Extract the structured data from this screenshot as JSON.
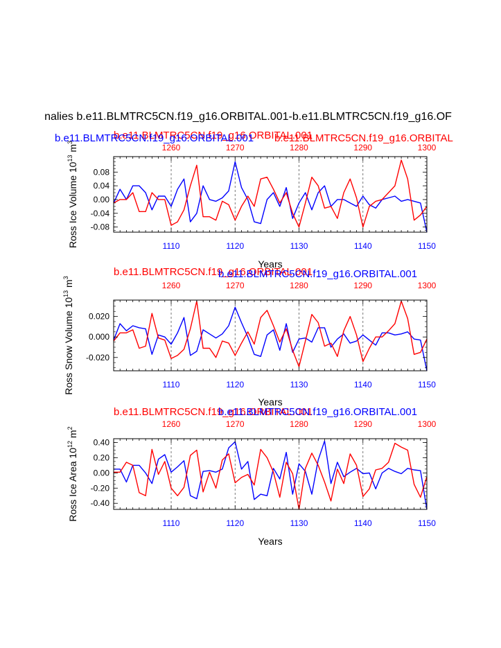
{
  "main_title": "nalies b.e11.BLMTRC5CN.f19_g16.ORBITAL.001-b.e11.BLMTRC5CN.f19_g16.OF",
  "colors": {
    "red_series": "#ff0000",
    "blue_series": "#0000ff",
    "axis": "#000000",
    "grid": "#555555"
  },
  "chart_data": [
    {
      "type": "line",
      "ylabel": "Ross Ice Volume 10^13 m^3",
      "ylabel_main": "Ross Ice Volume 10",
      "ylabel_exp": "13",
      "ylabel_unit": " m",
      "ylabel_unit_exp": "3",
      "xlabel": "Years",
      "top_title_red": "b.e11.BLMTRC5CN.f19_g16.ORBITAL.001",
      "top_title_blue": "b.e11.BLMTRC5CN.f19_g16.ORBITAL.001",
      "top_title_red2": "b.e11.BLMTRC5CN.f19_g16.ORBITAL",
      "ylim": [
        -0.095,
        0.125
      ],
      "yticks": [
        -0.08,
        -0.04,
        0.0,
        0.04,
        0.08
      ],
      "ytick_labels": [
        "-0.08",
        "-0.04",
        "0.00",
        "0.04",
        "0.08"
      ],
      "x_bottom_range": [
        1101,
        1150
      ],
      "x_bottom_ticks": [
        1110,
        1120,
        1130,
        1140,
        1150
      ],
      "x_bottom_labels": [
        "1110",
        "1120",
        "1130",
        "1140",
        "1150"
      ],
      "x_top_range": [
        1251,
        1300
      ],
      "x_top_ticks": [
        1260,
        1270,
        1280,
        1290,
        1300
      ],
      "x_top_labels": [
        "1260",
        "1270",
        "1280",
        "1290",
        "1300"
      ],
      "series": [
        {
          "name": "b.e11.BLMTRC5CN.f19_g16.ORBITAL.001",
          "axis": "bottom",
          "color": "blue",
          "x": [
            1101,
            1102,
            1103,
            1104,
            1105,
            1106,
            1107,
            1108,
            1109,
            1110,
            1111,
            1112,
            1113,
            1114,
            1115,
            1116,
            1117,
            1118,
            1119,
            1120,
            1121,
            1122,
            1123,
            1124,
            1125,
            1126,
            1127,
            1128,
            1129,
            1130,
            1131,
            1132,
            1133,
            1134,
            1135,
            1136,
            1137,
            1138,
            1139,
            1140,
            1141,
            1142,
            1143,
            1144,
            1145,
            1146,
            1147,
            1148,
            1149,
            1150
          ],
          "values": [
            -0.01,
            0.03,
            0.0,
            0.04,
            0.04,
            0.02,
            -0.03,
            0.01,
            0.01,
            -0.02,
            0.03,
            0.06,
            -0.065,
            -0.04,
            0.04,
            0.0,
            -0.005,
            0.005,
            0.025,
            0.11,
            0.035,
            0.0,
            -0.065,
            -0.07,
            0.0,
            0.02,
            -0.02,
            0.035,
            -0.055,
            -0.01,
            0.02,
            -0.03,
            0.02,
            0.04,
            -0.02,
            0.0,
            0.0,
            -0.01,
            -0.02,
            0.01,
            -0.015,
            -0.025,
            0.0,
            0.005,
            0.01,
            -0.005,
            0.0,
            -0.005,
            -0.01,
            -0.095
          ]
        },
        {
          "name": "b.e11.BLMTRC5CN.f19_g16.ORBITAL.001-b.e11.BLMTRC5CN.f19_g16.OF",
          "axis": "top",
          "color": "red",
          "x": [
            1251,
            1252,
            1253,
            1254,
            1255,
            1256,
            1257,
            1258,
            1259,
            1260,
            1261,
            1262,
            1263,
            1264,
            1265,
            1266,
            1267,
            1268,
            1269,
            1270,
            1271,
            1272,
            1273,
            1274,
            1275,
            1276,
            1277,
            1278,
            1279,
            1280,
            1281,
            1282,
            1283,
            1284,
            1285,
            1286,
            1287,
            1288,
            1289,
            1290,
            1291,
            1292,
            1293,
            1294,
            1295,
            1296,
            1297,
            1298,
            1299,
            1300
          ],
          "values": [
            -0.01,
            0.0,
            0.0,
            0.02,
            -0.035,
            -0.035,
            0.02,
            0.0,
            0.0,
            -0.075,
            -0.065,
            -0.03,
            0.04,
            0.1,
            -0.05,
            -0.05,
            -0.06,
            -0.005,
            -0.015,
            -0.06,
            -0.02,
            0.01,
            -0.02,
            0.06,
            0.065,
            0.03,
            -0.01,
            0.02,
            -0.04,
            -0.08,
            -0.01,
            0.065,
            0.04,
            -0.025,
            -0.02,
            -0.055,
            0.02,
            0.06,
            0.005,
            -0.08,
            -0.02,
            -0.005,
            0.0,
            0.02,
            0.04,
            0.115,
            0.06,
            -0.06,
            -0.045,
            -0.02
          ]
        }
      ]
    },
    {
      "type": "line",
      "ylabel": "Ross Snow Volume 10^13 m^3",
      "ylabel_main": "Ross Snow Volume 10",
      "ylabel_exp": "13",
      "ylabel_unit": " m",
      "ylabel_unit_exp": "3",
      "xlabel": "Years",
      "top_title_red": "b.e11.BLMTRC5CN.f19_g16.ORBITAL.001",
      "top_title_blue": "b.e11.BLMTRC5CN.f19_g16.ORBITAL.001",
      "ylim": [
        -0.033,
        0.036
      ],
      "yticks": [
        -0.02,
        0.0,
        0.02
      ],
      "ytick_labels": [
        "-0.020",
        "0.000",
        "0.020"
      ],
      "x_bottom_range": [
        1101,
        1150
      ],
      "x_bottom_ticks": [
        1110,
        1120,
        1130,
        1140,
        1150
      ],
      "x_bottom_labels": [
        "1110",
        "1120",
        "1130",
        "1140",
        "1150"
      ],
      "x_top_range": [
        1251,
        1300
      ],
      "x_top_ticks": [
        1260,
        1270,
        1280,
        1290,
        1300
      ],
      "x_top_labels": [
        "1260",
        "1270",
        "1280",
        "1290",
        "1300"
      ],
      "series": [
        {
          "name": "b.e11.BLMTRC5CN.f19_g16.ORBITAL.001",
          "axis": "bottom",
          "color": "blue",
          "x": [
            1101,
            1102,
            1103,
            1104,
            1105,
            1106,
            1107,
            1108,
            1109,
            1110,
            1111,
            1112,
            1113,
            1114,
            1115,
            1116,
            1117,
            1118,
            1119,
            1120,
            1121,
            1122,
            1123,
            1124,
            1125,
            1126,
            1127,
            1128,
            1129,
            1130,
            1131,
            1132,
            1133,
            1134,
            1135,
            1136,
            1137,
            1138,
            1139,
            1140,
            1141,
            1142,
            1143,
            1144,
            1145,
            1146,
            1147,
            1148,
            1149,
            1150
          ],
          "values": [
            -0.003,
            0.013,
            0.006,
            0.011,
            0.009,
            0.008,
            -0.017,
            0.002,
            0.0,
            -0.007,
            0.004,
            0.019,
            -0.018,
            -0.014,
            0.007,
            0.003,
            -0.001,
            0.003,
            0.011,
            0.029,
            0.014,
            0.0,
            -0.017,
            -0.019,
            0.002,
            0.007,
            -0.013,
            0.013,
            -0.015,
            -0.002,
            -0.001,
            -0.005,
            0.009,
            0.009,
            -0.01,
            -0.002,
            0.003,
            -0.006,
            -0.004,
            0.002,
            -0.003,
            -0.008,
            0.004,
            0.004,
            0.002,
            0.003,
            0.005,
            -0.002,
            -0.003,
            -0.033
          ]
        },
        {
          "name": "b.e11.BLMTRC5CN.f19_g16.ORBITAL.001",
          "axis": "top",
          "color": "red",
          "x": [
            1251,
            1252,
            1253,
            1254,
            1255,
            1256,
            1257,
            1258,
            1259,
            1260,
            1261,
            1262,
            1263,
            1264,
            1265,
            1266,
            1267,
            1268,
            1269,
            1270,
            1271,
            1272,
            1273,
            1274,
            1275,
            1276,
            1277,
            1278,
            1279,
            1280,
            1281,
            1282,
            1283,
            1284,
            1285,
            1286,
            1287,
            1288,
            1289,
            1290,
            1291,
            1292,
            1293,
            1294,
            1295,
            1296,
            1297,
            1298,
            1299,
            1300
          ],
          "values": [
            -0.004,
            0.004,
            0.004,
            0.007,
            -0.011,
            -0.009,
            0.023,
            -0.001,
            -0.003,
            -0.021,
            -0.018,
            -0.012,
            0.008,
            0.035,
            -0.011,
            -0.011,
            -0.02,
            -0.004,
            -0.006,
            -0.018,
            -0.006,
            0.005,
            -0.007,
            0.019,
            0.026,
            0.011,
            -0.005,
            0.008,
            -0.013,
            -0.029,
            -0.004,
            0.022,
            0.014,
            -0.009,
            -0.006,
            -0.019,
            0.006,
            0.02,
            0.002,
            -0.024,
            -0.011,
            0.0,
            0.0,
            0.006,
            0.013,
            0.035,
            0.018,
            -0.017,
            -0.015,
            -0.002
          ]
        }
      ]
    },
    {
      "type": "line",
      "ylabel": "Ross Ice Area 10^12 m^2",
      "ylabel_main": "Ross Ice Area 10",
      "ylabel_exp": "12",
      "ylabel_unit": " m",
      "ylabel_unit_exp": "2",
      "xlabel": "Years",
      "top_title_red": "b.e11.BLMTRC5CN.f19_g16.ORBITAL.001",
      "top_title_blue": "b.e11.BLMTRC5CN.f19_g16.ORBITAL.001",
      "ylim": [
        -0.48,
        0.45
      ],
      "yticks": [
        -0.4,
        -0.2,
        0.0,
        0.2,
        0.4
      ],
      "ytick_labels": [
        "-0.40",
        "-0.20",
        "0.00",
        "0.20",
        "0.40"
      ],
      "x_bottom_range": [
        1101,
        1150
      ],
      "x_bottom_ticks": [
        1110,
        1120,
        1130,
        1140,
        1150
      ],
      "x_bottom_labels": [
        "1110",
        "1120",
        "1130",
        "1140",
        "1150"
      ],
      "x_top_range": [
        1251,
        1300
      ],
      "x_top_ticks": [
        1260,
        1270,
        1280,
        1290,
        1300
      ],
      "x_top_labels": [
        "1260",
        "1270",
        "1280",
        "1290",
        "1300"
      ],
      "series": [
        {
          "name": "b.e11.BLMTRC5CN.f19_g16.ORBITAL.001",
          "axis": "bottom",
          "color": "blue",
          "x": [
            1101,
            1102,
            1103,
            1104,
            1105,
            1106,
            1107,
            1108,
            1109,
            1110,
            1111,
            1112,
            1113,
            1114,
            1115,
            1116,
            1117,
            1118,
            1119,
            1120,
            1121,
            1122,
            1123,
            1124,
            1125,
            1126,
            1127,
            1128,
            1129,
            1130,
            1131,
            1132,
            1133,
            1134,
            1135,
            1136,
            1137,
            1138,
            1139,
            1140,
            1141,
            1142,
            1143,
            1144,
            1145,
            1146,
            1147,
            1148,
            1149,
            1150
          ],
          "values": [
            0.05,
            0.05,
            -0.12,
            0.1,
            0.1,
            0.0,
            -0.14,
            0.18,
            0.24,
            0.01,
            0.08,
            0.16,
            -0.3,
            -0.34,
            0.02,
            0.03,
            0.01,
            0.05,
            0.33,
            0.41,
            0.05,
            0.15,
            -0.35,
            -0.28,
            -0.3,
            0.06,
            -0.08,
            0.27,
            -0.28,
            0.12,
            0.02,
            -0.28,
            0.17,
            0.42,
            -0.14,
            0.14,
            -0.05,
            0.01,
            0.06,
            -0.01,
            0.0,
            -0.21,
            0.0,
            0.06,
            0.02,
            -0.01,
            0.06,
            0.04,
            0.03,
            -0.48
          ]
        },
        {
          "name": "b.e11.BLMTRC5CN.f19_g16.ORBITAL.001",
          "axis": "top",
          "color": "red",
          "x": [
            1251,
            1252,
            1253,
            1254,
            1255,
            1256,
            1257,
            1258,
            1259,
            1260,
            1261,
            1262,
            1263,
            1264,
            1265,
            1266,
            1267,
            1268,
            1269,
            1270,
            1271,
            1272,
            1273,
            1274,
            1275,
            1276,
            1277,
            1278,
            1279,
            1280,
            1281,
            1282,
            1283,
            1284,
            1285,
            1286,
            1287,
            1288,
            1289,
            1290,
            1291,
            1292,
            1293,
            1294,
            1295,
            1296,
            1297,
            1298,
            1299,
            1300
          ],
          "values": [
            0.01,
            0.01,
            0.14,
            0.1,
            -0.26,
            -0.3,
            0.31,
            -0.02,
            0.15,
            -0.2,
            -0.3,
            -0.19,
            0.23,
            0.3,
            -0.25,
            0.01,
            -0.2,
            0.17,
            0.25,
            -0.13,
            -0.06,
            -0.02,
            -0.16,
            0.31,
            0.2,
            0.01,
            -0.32,
            0.14,
            -0.01,
            -0.48,
            0.06,
            0.26,
            0.1,
            -0.12,
            -0.37,
            0.05,
            -0.14,
            0.25,
            0.1,
            -0.31,
            -0.21,
            0.04,
            0.06,
            0.14,
            0.39,
            0.34,
            0.3,
            -0.15,
            -0.32,
            -0.05
          ]
        }
      ]
    }
  ]
}
